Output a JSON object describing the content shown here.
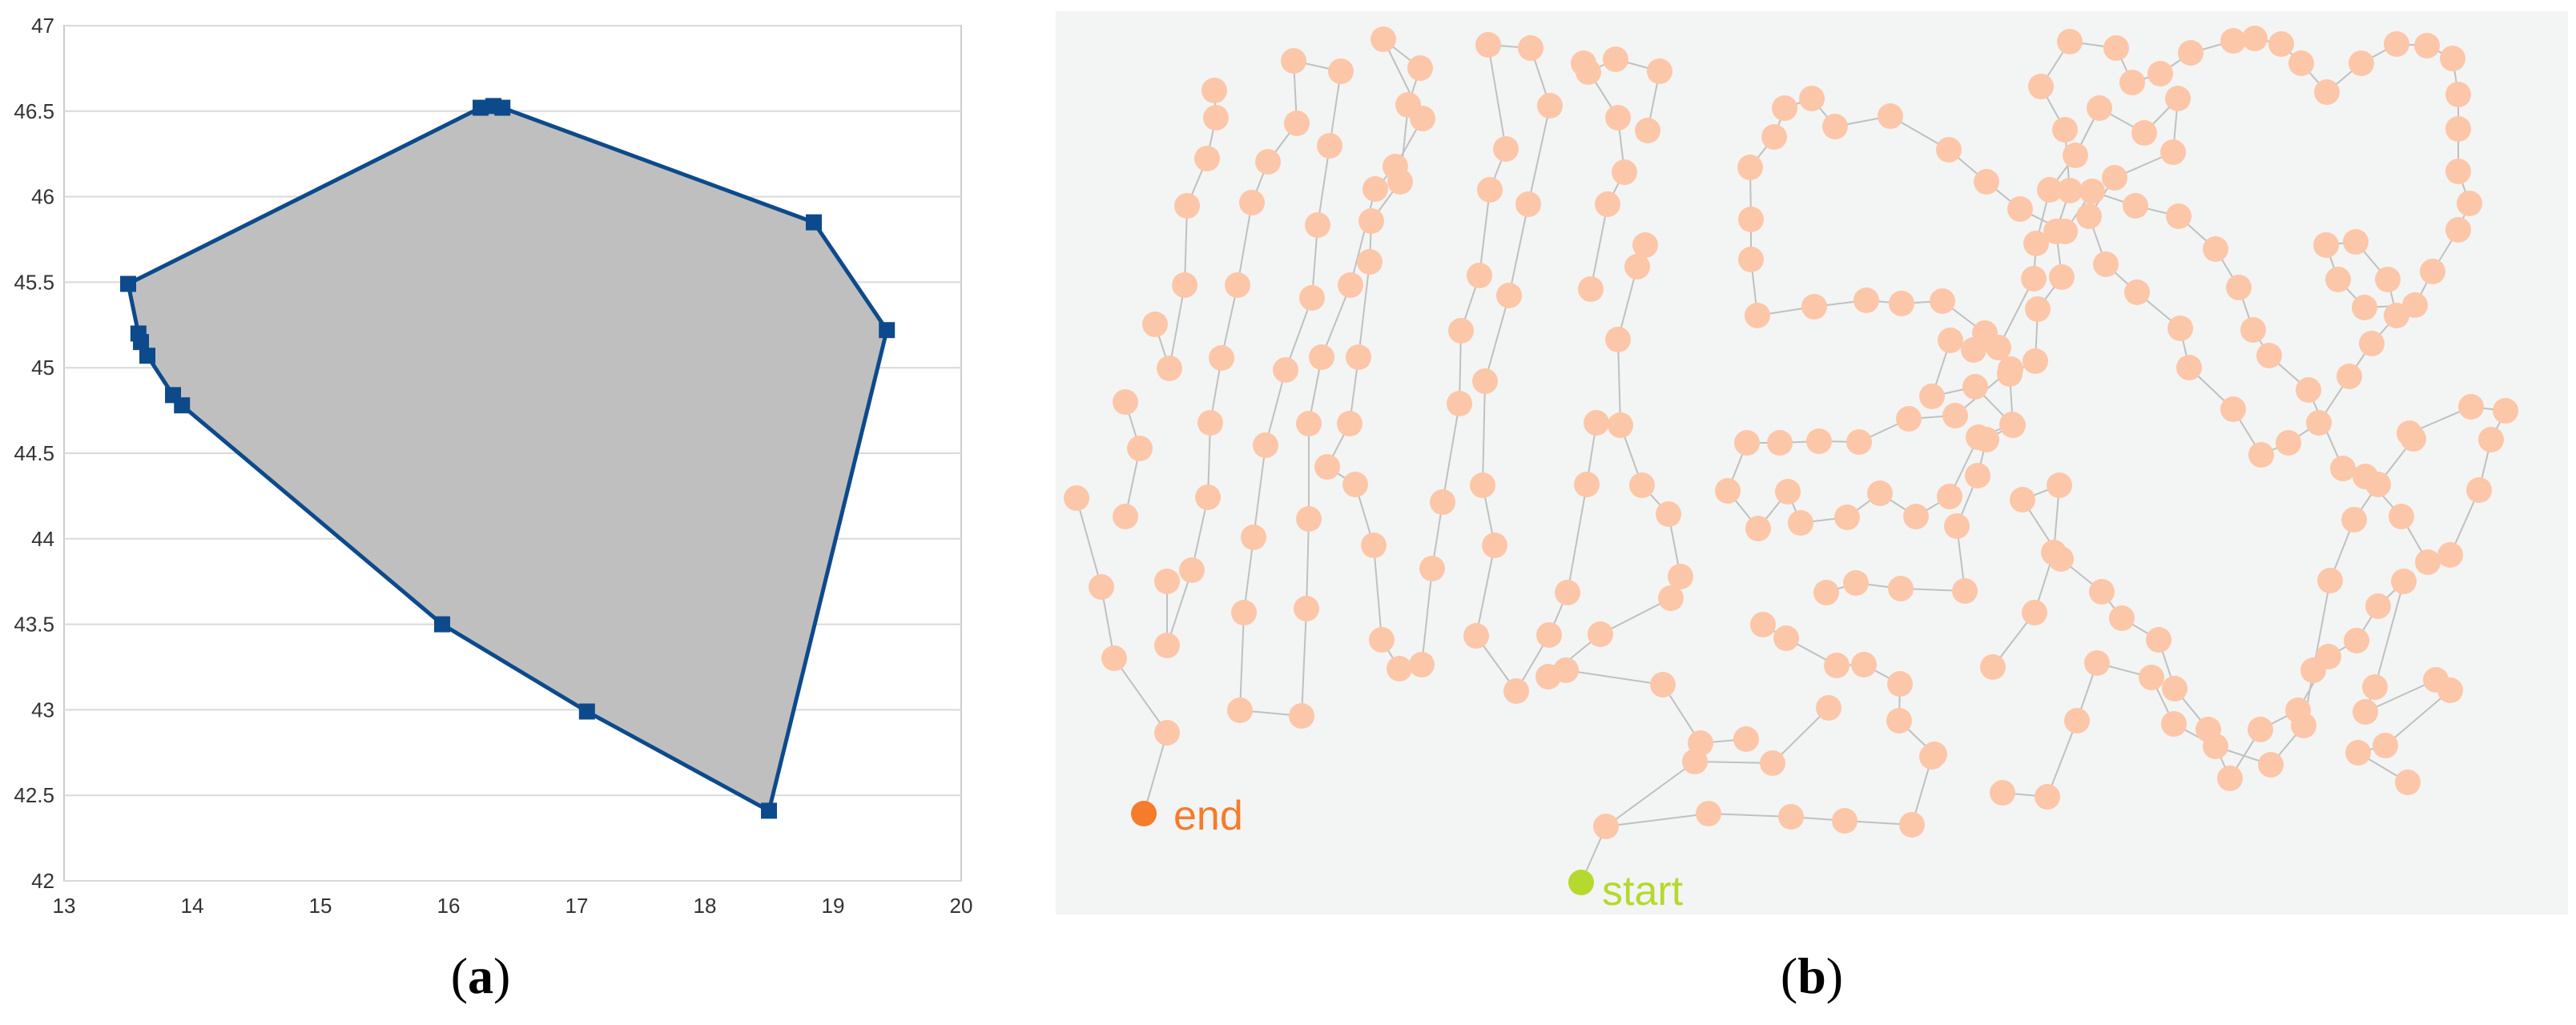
{
  "panels": [
    {
      "label_open": "(",
      "label_letter": "a",
      "label_close": ")"
    },
    {
      "label_open": "(",
      "label_letter": "b",
      "label_close": ")"
    }
  ],
  "colors": {
    "series": "#0d4a8c",
    "fill": "#bfbfbf",
    "grid": "#d9d9d9",
    "node": "#fcc7a8",
    "edge": "#c0c0c0",
    "end": "#f47c2c",
    "start": "#b5d92c",
    "panel_bg": "#f3f4f4"
  },
  "chart_data": [
    {
      "type": "area",
      "title": "",
      "xlabel": "",
      "ylabel": "",
      "xlim": [
        13,
        20
      ],
      "ylim": [
        42,
        47
      ],
      "x_ticks": [
        "13",
        "14",
        "15",
        "16",
        "17",
        "18",
        "19",
        "20"
      ],
      "y_ticks": [
        "42",
        "42.5",
        "43",
        "43.5",
        "44",
        "44.5",
        "45",
        "45.5",
        "46",
        "46.5",
        "47"
      ],
      "grid": "horizontal",
      "legend": "none",
      "series": [
        {
          "points": [
            [
              13.5,
              45.49
            ],
            [
              16.25,
              46.52
            ],
            [
              16.35,
              46.53
            ],
            [
              16.42,
              46.52
            ],
            [
              18.85,
              45.85
            ],
            [
              19.42,
              45.22
            ],
            [
              18.5,
              42.41
            ],
            [
              17.08,
              42.99
            ],
            [
              15.95,
              43.5
            ],
            [
              13.92,
              44.78
            ],
            [
              13.85,
              44.84
            ],
            [
              13.65,
              45.07
            ],
            [
              13.6,
              45.15
            ],
            [
              13.58,
              45.2
            ],
            [
              13.5,
              45.49
            ]
          ]
        }
      ]
    },
    {
      "type": "scatter",
      "title": "",
      "axes": "hidden",
      "legend": "none",
      "markers": {
        "end_label": "end",
        "start_label": "start"
      }
    }
  ]
}
